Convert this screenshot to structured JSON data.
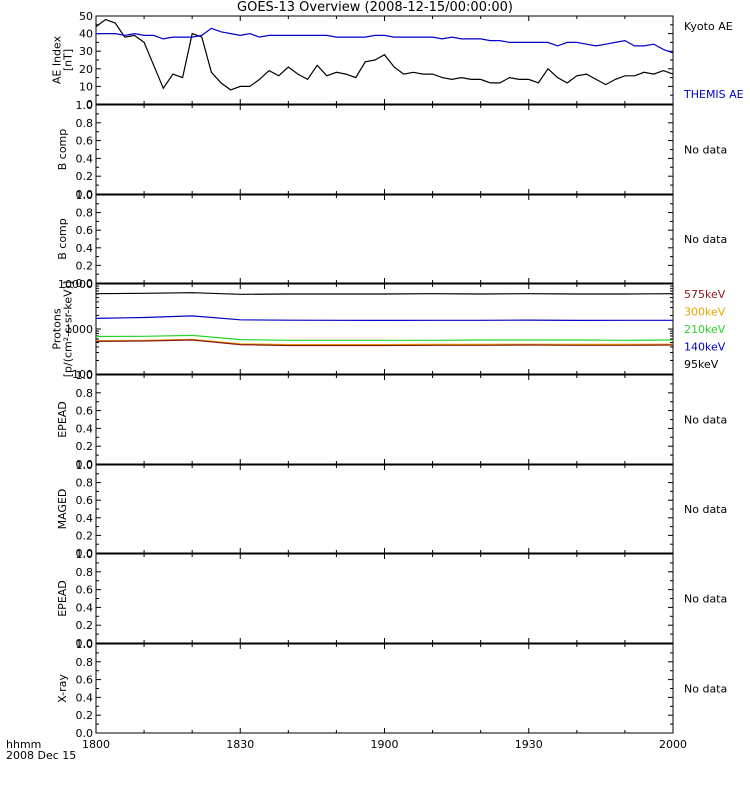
{
  "title": "GOES-13 Overview (2008-12-15/00:00:00)",
  "time_axis": {
    "corner_label_1": "hhmm",
    "corner_label_2": "2008 Dec 15",
    "ticks": [
      "1800",
      "1830",
      "1900",
      "1930",
      "2000"
    ]
  },
  "colors": {
    "kyoto": "#000000",
    "themis": "#0000c8",
    "p575": "#8b1a1a",
    "p300": "#e8a400",
    "p210": "#2ad22a",
    "p140": "#0000c8",
    "p95": "#000000",
    "frame": "#000000"
  },
  "chart_data": [
    {
      "type": "line",
      "panel": "ae",
      "ylabel": [
        "AE Index",
        "[nT]"
      ],
      "ylim": [
        0,
        50
      ],
      "yticks": [
        "0",
        "10",
        "20",
        "30",
        "40",
        "50"
      ],
      "xlim": [
        0,
        120
      ],
      "legend": [
        "Kyoto AE",
        "THEMIS AE"
      ],
      "series": [
        {
          "name": "Kyoto AE",
          "x": [
            0,
            2,
            4,
            6,
            8,
            10,
            12,
            14,
            16,
            18,
            20,
            22,
            24,
            26,
            28,
            30,
            32,
            34,
            36,
            38,
            40,
            42,
            44,
            46,
            48,
            50,
            52,
            54,
            56,
            58,
            60,
            62,
            64,
            66,
            68,
            70,
            72,
            74,
            76,
            78,
            80,
            82,
            84,
            86,
            88,
            90,
            92,
            94,
            96,
            98,
            100,
            102,
            104,
            106,
            108,
            110,
            112,
            114,
            116,
            118,
            120
          ],
          "values": [
            44,
            48,
            46,
            38,
            39,
            35,
            22,
            9,
            17,
            15,
            40,
            38,
            18,
            12,
            8,
            10,
            10,
            14,
            19,
            16,
            21,
            17,
            14,
            22,
            16,
            18,
            17,
            15,
            24,
            25,
            28,
            21,
            17,
            18,
            17,
            17,
            15,
            14,
            15,
            14,
            14,
            12,
            12,
            15,
            14,
            14,
            12,
            20,
            15,
            12,
            16,
            17,
            14,
            11,
            14,
            16,
            16,
            18,
            17,
            19,
            17
          ]
        },
        {
          "name": "THEMIS AE",
          "x": [
            0,
            2,
            4,
            6,
            8,
            10,
            12,
            14,
            16,
            18,
            20,
            22,
            24,
            26,
            28,
            30,
            32,
            34,
            36,
            38,
            40,
            42,
            44,
            46,
            48,
            50,
            52,
            54,
            56,
            58,
            60,
            62,
            64,
            66,
            68,
            70,
            72,
            74,
            76,
            78,
            80,
            82,
            84,
            86,
            88,
            90,
            92,
            94,
            96,
            98,
            100,
            102,
            104,
            106,
            108,
            110,
            112,
            114,
            116,
            118,
            120
          ],
          "values": [
            40,
            40,
            40,
            39,
            40,
            39,
            39,
            37,
            38,
            38,
            38,
            39,
            43,
            41,
            40,
            39,
            40,
            38,
            39,
            39,
            39,
            39,
            39,
            39,
            39,
            38,
            38,
            38,
            38,
            39,
            39,
            38,
            38,
            38,
            38,
            38,
            37,
            38,
            37,
            37,
            37,
            36,
            36,
            35,
            35,
            35,
            35,
            35,
            33,
            35,
            35,
            34,
            33,
            34,
            35,
            36,
            33,
            33,
            34,
            31,
            29
          ]
        }
      ]
    },
    {
      "type": "line",
      "panel": "bcomp1",
      "ylabel": [
        "B comp"
      ],
      "ylim": [
        0,
        1
      ],
      "yticks": [
        "0.0",
        "0.2",
        "0.4",
        "0.6",
        "0.8",
        "1.0"
      ],
      "note": "No data"
    },
    {
      "type": "line",
      "panel": "bcomp2",
      "ylabel": [
        "B comp"
      ],
      "ylim": [
        0,
        1
      ],
      "yticks": [
        "0.0",
        "0.2",
        "0.4",
        "0.6",
        "0.8",
        "1.0"
      ],
      "note": "No data"
    },
    {
      "type": "line",
      "panel": "protons",
      "log_scale": true,
      "ylabel": [
        "Protons",
        "[p/(cm²-s-sr-keV)]"
      ],
      "ylim": [
        100,
        10000
      ],
      "yticks": [
        "100",
        "1000",
        "10000"
      ],
      "xlim": [
        0,
        120
      ],
      "legend": [
        "575keV",
        "300keV",
        "210keV",
        "140keV",
        "95keV"
      ],
      "series": [
        {
          "name": "95keV",
          "x": [
            0,
            10,
            20,
            30,
            40,
            50,
            60,
            70,
            80,
            90,
            100,
            110,
            120
          ],
          "values": [
            6100,
            6200,
            6400,
            5900,
            6000,
            6000,
            6000,
            6100,
            6000,
            6100,
            6000,
            6000,
            6100
          ]
        },
        {
          "name": "140keV",
          "x": [
            0,
            10,
            20,
            30,
            40,
            50,
            60,
            70,
            80,
            90,
            100,
            110,
            120
          ],
          "values": [
            1720,
            1800,
            1950,
            1600,
            1570,
            1560,
            1550,
            1560,
            1560,
            1580,
            1550,
            1560,
            1560
          ]
        },
        {
          "name": "210keV",
          "x": [
            0,
            10,
            20,
            30,
            40,
            50,
            60,
            70,
            80,
            90,
            100,
            110,
            120
          ],
          "values": [
            680,
            690,
            720,
            580,
            560,
            560,
            560,
            560,
            570,
            570,
            570,
            560,
            570
          ]
        },
        {
          "name": "300keV",
          "x": [
            0,
            10,
            20,
            30,
            40,
            50,
            60,
            70,
            80,
            90,
            100,
            110,
            120
          ],
          "values": [
            550,
            560,
            590,
            470,
            450,
            450,
            450,
            455,
            455,
            460,
            455,
            455,
            460
          ]
        },
        {
          "name": "575keV",
          "x": [
            0,
            10,
            20,
            30,
            40,
            50,
            60,
            70,
            80,
            90,
            100,
            110,
            120
          ],
          "values": [
            530,
            540,
            570,
            450,
            430,
            430,
            430,
            435,
            435,
            440,
            435,
            435,
            440
          ]
        }
      ]
    },
    {
      "type": "line",
      "panel": "epead1",
      "ylabel": [
        "EPEAD"
      ],
      "ylim": [
        0,
        1
      ],
      "yticks": [
        "0.0",
        "0.2",
        "0.4",
        "0.6",
        "0.8",
        "1.0"
      ],
      "note": "No data"
    },
    {
      "type": "line",
      "panel": "maged",
      "ylabel": [
        "MAGED"
      ],
      "ylim": [
        0,
        1
      ],
      "yticks": [
        "0.0",
        "0.2",
        "0.4",
        "0.6",
        "0.8",
        "1.0"
      ],
      "note": "No data"
    },
    {
      "type": "line",
      "panel": "epead2",
      "ylabel": [
        "EPEAD"
      ],
      "ylim": [
        0,
        1
      ],
      "yticks": [
        "0.0",
        "0.2",
        "0.4",
        "0.6",
        "0.8",
        "1.0"
      ],
      "note": "No data"
    },
    {
      "type": "line",
      "panel": "xray",
      "ylabel": [
        "X-ray"
      ],
      "ylim": [
        0,
        1
      ],
      "yticks": [
        "0.0",
        "0.2",
        "0.4",
        "0.6",
        "0.8",
        "1.0"
      ],
      "note": "No data"
    }
  ]
}
